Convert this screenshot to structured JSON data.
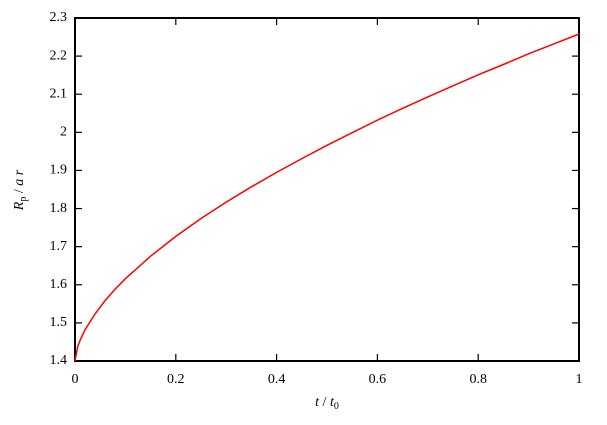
{
  "chart_data": {
    "type": "line",
    "xlabel": [
      "t",
      " / ",
      "t",
      "0"
    ],
    "ylabel": [
      "R",
      "p",
      " / ",
      "a r"
    ],
    "x": [
      0,
      0.005,
      0.01,
      0.02,
      0.04,
      0.06,
      0.08,
      0.1,
      0.15,
      0.2,
      0.25,
      0.3,
      0.35,
      0.4,
      0.45,
      0.5,
      0.55,
      0.6,
      0.65,
      0.7,
      0.75,
      0.8,
      0.85,
      0.9,
      0.95,
      1
    ],
    "series": [
      {
        "color": "#ff0000",
        "values": [
          1.4,
          1.436,
          1.454,
          1.482,
          1.524,
          1.559,
          1.589,
          1.616,
          1.675,
          1.727,
          1.774,
          1.817,
          1.857,
          1.895,
          1.931,
          1.966,
          1.999,
          2.032,
          2.063,
          2.093,
          2.122,
          2.151,
          2.178,
          2.206,
          2.232,
          2.258
        ]
      }
    ],
    "xlim": [
      0,
      1
    ],
    "xticks": [
      0,
      0.2,
      0.4,
      0.6,
      0.8,
      1
    ],
    "ylim": [
      1.4,
      2.3
    ],
    "yticks": [
      1.4,
      1.5,
      1.6,
      1.7,
      1.8,
      1.9,
      2,
      2.1,
      2.2,
      2.3
    ],
    "grid": false
  }
}
